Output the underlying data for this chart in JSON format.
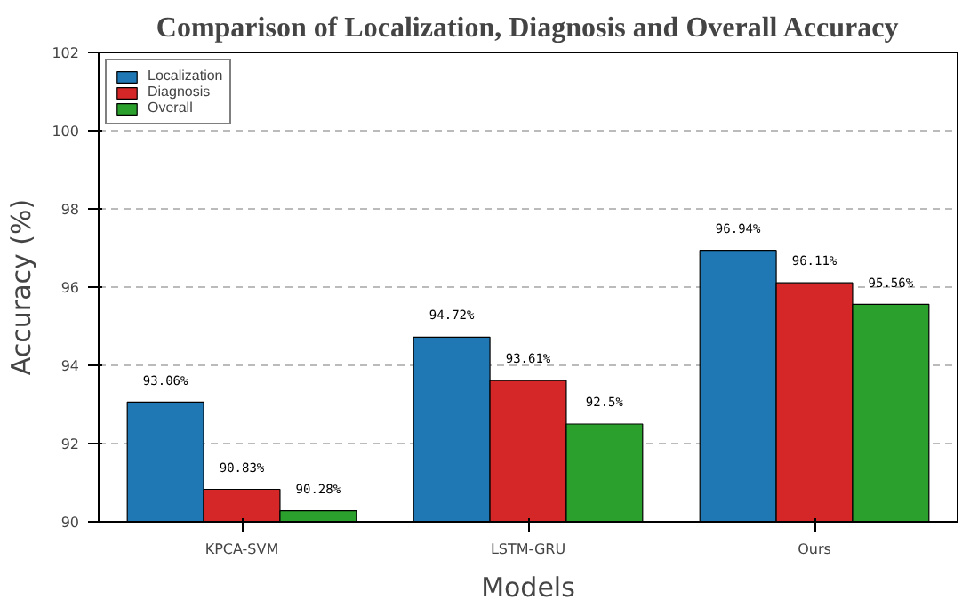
{
  "chart_data": {
    "type": "bar",
    "title": "Comparison of Localization, Diagnosis and Overall Accuracy",
    "xlabel": "Models",
    "ylabel": "Accuracy (%)",
    "categories": [
      "KPCA-SVM",
      "LSTM-GRU",
      "Ours"
    ],
    "series": [
      {
        "name": "Localization",
        "color": "#1f77b4",
        "values": [
          93.06,
          94.72,
          96.94
        ],
        "value_labels": [
          "93.06%",
          "94.72%",
          "96.94%"
        ]
      },
      {
        "name": "Diagnosis",
        "color": "#d62728",
        "values": [
          90.83,
          93.61,
          96.11
        ],
        "value_labels": [
          "90.83%",
          "93.61%",
          "96.11%"
        ]
      },
      {
        "name": "Overall",
        "color": "#2ca02c",
        "values": [
          90.28,
          92.5,
          95.56
        ],
        "value_labels": [
          "90.28%",
          "92.5%",
          "95.56%"
        ]
      }
    ],
    "ylim": [
      90,
      102
    ],
    "yticks": [
      90,
      92,
      94,
      96,
      98,
      100,
      102
    ],
    "grid": "y",
    "legend": "top left"
  }
}
